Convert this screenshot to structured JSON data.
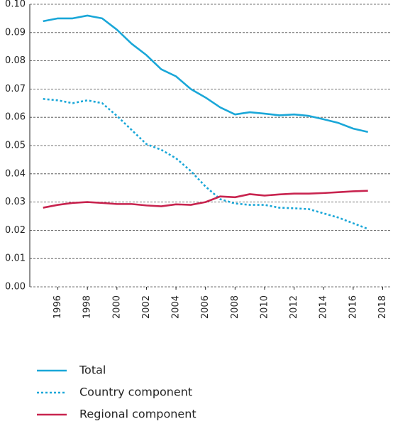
{
  "chart_data": {
    "type": "line",
    "x": [
      1995,
      1996,
      1997,
      1998,
      1999,
      2000,
      2001,
      2002,
      2003,
      2004,
      2005,
      2006,
      2007,
      2008,
      2009,
      2010,
      2011,
      2012,
      2013,
      2014,
      2015,
      2016,
      2017
    ],
    "series": [
      {
        "name": "Total",
        "color": "#1aa7d8",
        "style": "solid",
        "values": [
          0.094,
          0.095,
          0.095,
          0.096,
          0.095,
          0.091,
          0.086,
          0.082,
          0.077,
          0.0745,
          0.07,
          0.067,
          0.0635,
          0.061,
          0.0618,
          0.0613,
          0.0607,
          0.061,
          0.0605,
          0.0593,
          0.058,
          0.056,
          0.0548
        ]
      },
      {
        "name": "Country component",
        "color": "#1aa7d8",
        "style": "dotted",
        "values": [
          0.0665,
          0.066,
          0.065,
          0.066,
          0.065,
          0.0605,
          0.0555,
          0.0505,
          0.0485,
          0.0455,
          0.041,
          0.0355,
          0.031,
          0.0295,
          0.029,
          0.029,
          0.028,
          0.0278,
          0.0275,
          0.026,
          0.0245,
          0.0225,
          0.0205
        ]
      },
      {
        "name": "Regional component",
        "color": "#c8244f",
        "style": "solid",
        "values": [
          0.028,
          0.029,
          0.0297,
          0.03,
          0.0297,
          0.0293,
          0.0293,
          0.0288,
          0.0285,
          0.0292,
          0.029,
          0.03,
          0.032,
          0.0317,
          0.0328,
          0.0323,
          0.0327,
          0.033,
          0.033,
          0.0332,
          0.0335,
          0.0338,
          0.034
        ]
      }
    ],
    "xlim": [
      1994.1,
      2018.6
    ],
    "xticks": [
      1996,
      1998,
      2000,
      2002,
      2004,
      2006,
      2008,
      2010,
      2012,
      2014,
      2016,
      2018
    ],
    "ylim": [
      0,
      0.1
    ],
    "yticks": [
      {
        "value": 0,
        "label": "0.00"
      },
      {
        "value": 0.01,
        "label": "0.01"
      },
      {
        "value": 0.02,
        "label": "0.02"
      },
      {
        "value": 0.03,
        "label": "0.03"
      },
      {
        "value": 0.04,
        "label": "0.04"
      },
      {
        "value": 0.05,
        "label": "0.05"
      },
      {
        "value": 0.06,
        "label": "0.06"
      },
      {
        "value": 0.07,
        "label": "0.07"
      },
      {
        "value": 0.08,
        "label": "0.08"
      },
      {
        "value": 0.09,
        "label": "0.09"
      },
      {
        "value": 0.1,
        "label": "0.10"
      }
    ],
    "grid": true
  }
}
